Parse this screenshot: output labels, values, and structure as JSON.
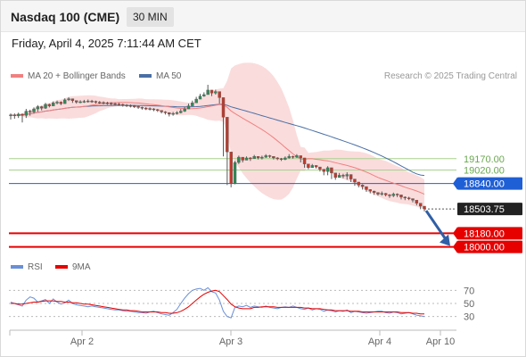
{
  "header": {
    "title": "Nasdaq 100 (CME)",
    "period": "30 MIN"
  },
  "datetime": "Friday, April 4, 2025 7:11:44 AM CET",
  "legend": {
    "bands": "MA 20 + Bollinger Bands",
    "ma50": "MA 50",
    "rsi": "RSI",
    "ma9": "9MA",
    "credit": "Research © 2025 Trading Central"
  },
  "colors": {
    "bands_fill": "#f8c9c9",
    "ma20": "#f08080",
    "ma50": "#4a6fa5",
    "candle": "#5a5a5a",
    "candle_up": "#2e8b57",
    "candle_down": "#c0392b",
    "resistance": "#a9d18e",
    "pivot": "#1f5fd6",
    "support": "#e60000",
    "price": "#222222",
    "rsi": "#6a8fd8",
    "rsi_ma": "#e60000",
    "arrow": "#2f5fa6"
  },
  "chart_data": [
    {
      "type": "candlestick",
      "x_labels": [
        "Apr 2",
        "Apr 3",
        "Apr 4",
        "Apr 10"
      ],
      "ylim": [
        17960,
        20150
      ],
      "levels": [
        {
          "value": 19170.0,
          "label": "19170.00",
          "kind": "resistance"
        },
        {
          "value": 19020.0,
          "label": "19020.00",
          "kind": "resistance"
        },
        {
          "value": 18840.0,
          "label": "18840.00",
          "kind": "pivot"
        },
        {
          "value": 18503.75,
          "label": "18503.75",
          "kind": "last"
        },
        {
          "value": 18180.0,
          "label": "18180.00",
          "kind": "support"
        },
        {
          "value": 18000.0,
          "label": "18000.00",
          "kind": "support"
        }
      ],
      "close": [
        19750,
        19740,
        19760,
        19745,
        19800,
        19790,
        19830,
        19860,
        19840,
        19890,
        19870,
        19910,
        19920,
        19900,
        19950,
        19965,
        19940,
        19920,
        19925,
        19930,
        19935,
        19930,
        19920,
        19915,
        19910,
        19905,
        19900,
        19895,
        19890,
        19880,
        19875,
        19870,
        19862,
        19850,
        19840,
        19835,
        19830,
        19820,
        19810,
        19790,
        19780,
        19760,
        19770,
        19780,
        19800,
        19830,
        19870,
        19910,
        19960,
        20000,
        20020,
        20080,
        20040,
        20060,
        19980,
        19720,
        19260,
        18840,
        19120,
        19190,
        19150,
        19180,
        19170,
        19200,
        19180,
        19190,
        19210,
        19200,
        19180,
        19170,
        19160,
        19180,
        19200,
        19190,
        19210,
        19180,
        19100,
        19050,
        19080,
        19060,
        19030,
        19000,
        19050,
        18980,
        18920,
        18950,
        18940,
        18960,
        18900,
        18860,
        18820,
        18800,
        18760,
        18740,
        18720,
        18700,
        18710,
        18690,
        18680,
        18700,
        18690,
        18660,
        18650,
        18640,
        18620,
        18580,
        18540,
        18503.75
      ],
      "high": [
        19770,
        19770,
        19780,
        19770,
        19830,
        19820,
        19850,
        19880,
        19870,
        19910,
        19900,
        19930,
        19940,
        19930,
        19970,
        19985,
        19965,
        19940,
        19945,
        19950,
        19955,
        19950,
        19940,
        19935,
        19930,
        19925,
        19920,
        19915,
        19910,
        19900,
        19895,
        19890,
        19882,
        19870,
        19860,
        19855,
        19850,
        19840,
        19830,
        19810,
        19800,
        19785,
        19790,
        19800,
        19830,
        19860,
        19900,
        19940,
        19990,
        20030,
        20050,
        20150,
        20070,
        20085,
        20010,
        19760,
        19300,
        18880,
        19140,
        19210,
        19170,
        19200,
        19190,
        19220,
        19200,
        19210,
        19230,
        19220,
        19200,
        19190,
        19180,
        19200,
        19230,
        19210,
        19230,
        19200,
        19120,
        19080,
        19100,
        19080,
        19060,
        19030,
        19070,
        19010,
        18950,
        18980,
        18970,
        18990,
        18930,
        18890,
        18850,
        18830,
        18780,
        18765,
        18745,
        18725,
        18735,
        18715,
        18700,
        18720,
        18710,
        18685,
        18670,
        18665,
        18640,
        18600,
        18560,
        18520
      ],
      "low": [
        19690,
        19700,
        19710,
        19650,
        19710,
        19740,
        19770,
        19790,
        19810,
        19830,
        19850,
        19880,
        19890,
        19880,
        19900,
        19935,
        19910,
        19900,
        19905,
        19910,
        19915,
        19910,
        19900,
        19895,
        19890,
        19885,
        19880,
        19875,
        19870,
        19860,
        19855,
        19850,
        19842,
        19830,
        19820,
        19815,
        19810,
        19800,
        19790,
        19770,
        19755,
        19730,
        19740,
        19755,
        19770,
        19790,
        19840,
        19880,
        19930,
        19960,
        19990,
        20020,
        20000,
        20020,
        19900,
        19200,
        18820,
        18790,
        18830,
        19100,
        19120,
        19150,
        19140,
        19170,
        19160,
        19160,
        19180,
        19180,
        19160,
        19150,
        19140,
        19150,
        19170,
        19170,
        19180,
        19120,
        19050,
        19030,
        19050,
        19040,
        19000,
        18950,
        18950,
        18900,
        18890,
        18920,
        18910,
        18890,
        18860,
        18810,
        18790,
        18760,
        18730,
        18710,
        18690,
        18680,
        18680,
        18670,
        18650,
        18660,
        18660,
        18630,
        18620,
        18620,
        18590,
        18550,
        18500,
        18470
      ]
    },
    {
      "type": "line",
      "name": "RSI",
      "yticks": [
        30,
        50,
        70
      ],
      "ylim": [
        20,
        80
      ],
      "values": [
        52,
        50,
        48,
        46,
        55,
        60,
        58,
        52,
        54,
        56,
        50,
        57,
        52,
        49,
        51,
        55,
        50,
        48,
        47,
        46,
        45,
        46,
        45,
        44,
        43,
        42,
        41,
        40,
        40,
        39,
        38,
        38,
        37,
        36,
        36,
        35,
        37,
        38,
        36,
        34,
        33,
        32,
        36,
        41,
        50,
        58,
        65,
        70,
        72,
        73,
        70,
        74,
        68,
        66,
        55,
        38,
        30,
        28,
        44,
        46,
        45,
        47,
        44,
        46,
        45,
        44,
        46,
        44,
        43,
        42,
        44,
        45,
        44,
        46,
        44,
        42,
        41,
        43,
        40,
        42,
        41,
        38,
        40,
        39,
        37,
        39,
        38,
        40,
        36,
        38,
        37,
        36,
        35,
        36,
        37,
        38,
        38,
        36,
        35,
        37,
        36,
        34,
        35,
        36,
        34,
        32,
        31,
        30
      ],
      "ma9": [
        50,
        50,
        49,
        49,
        50,
        51,
        52,
        52,
        53,
        54,
        54,
        54,
        53,
        53,
        52,
        52,
        51,
        51,
        50,
        49,
        49,
        48,
        47,
        46,
        45,
        44,
        43,
        42,
        41,
        40,
        40,
        39,
        39,
        38,
        37,
        37,
        37,
        37,
        37,
        36,
        36,
        35,
        35,
        36,
        38,
        41,
        45,
        50,
        55,
        60,
        64,
        67,
        69,
        70,
        68,
        62,
        56,
        49,
        45,
        43,
        42,
        42,
        42,
        44,
        44,
        45,
        45,
        45,
        45,
        44,
        44,
        44,
        44,
        44,
        44,
        44,
        43,
        43,
        42,
        42,
        42,
        41,
        40,
        40,
        39,
        39,
        39,
        39,
        38,
        38,
        38,
        37,
        37,
        37,
        37,
        37,
        37,
        37,
        37,
        37,
        37,
        36,
        36,
        36,
        35,
        35,
        34,
        34
      ]
    }
  ]
}
